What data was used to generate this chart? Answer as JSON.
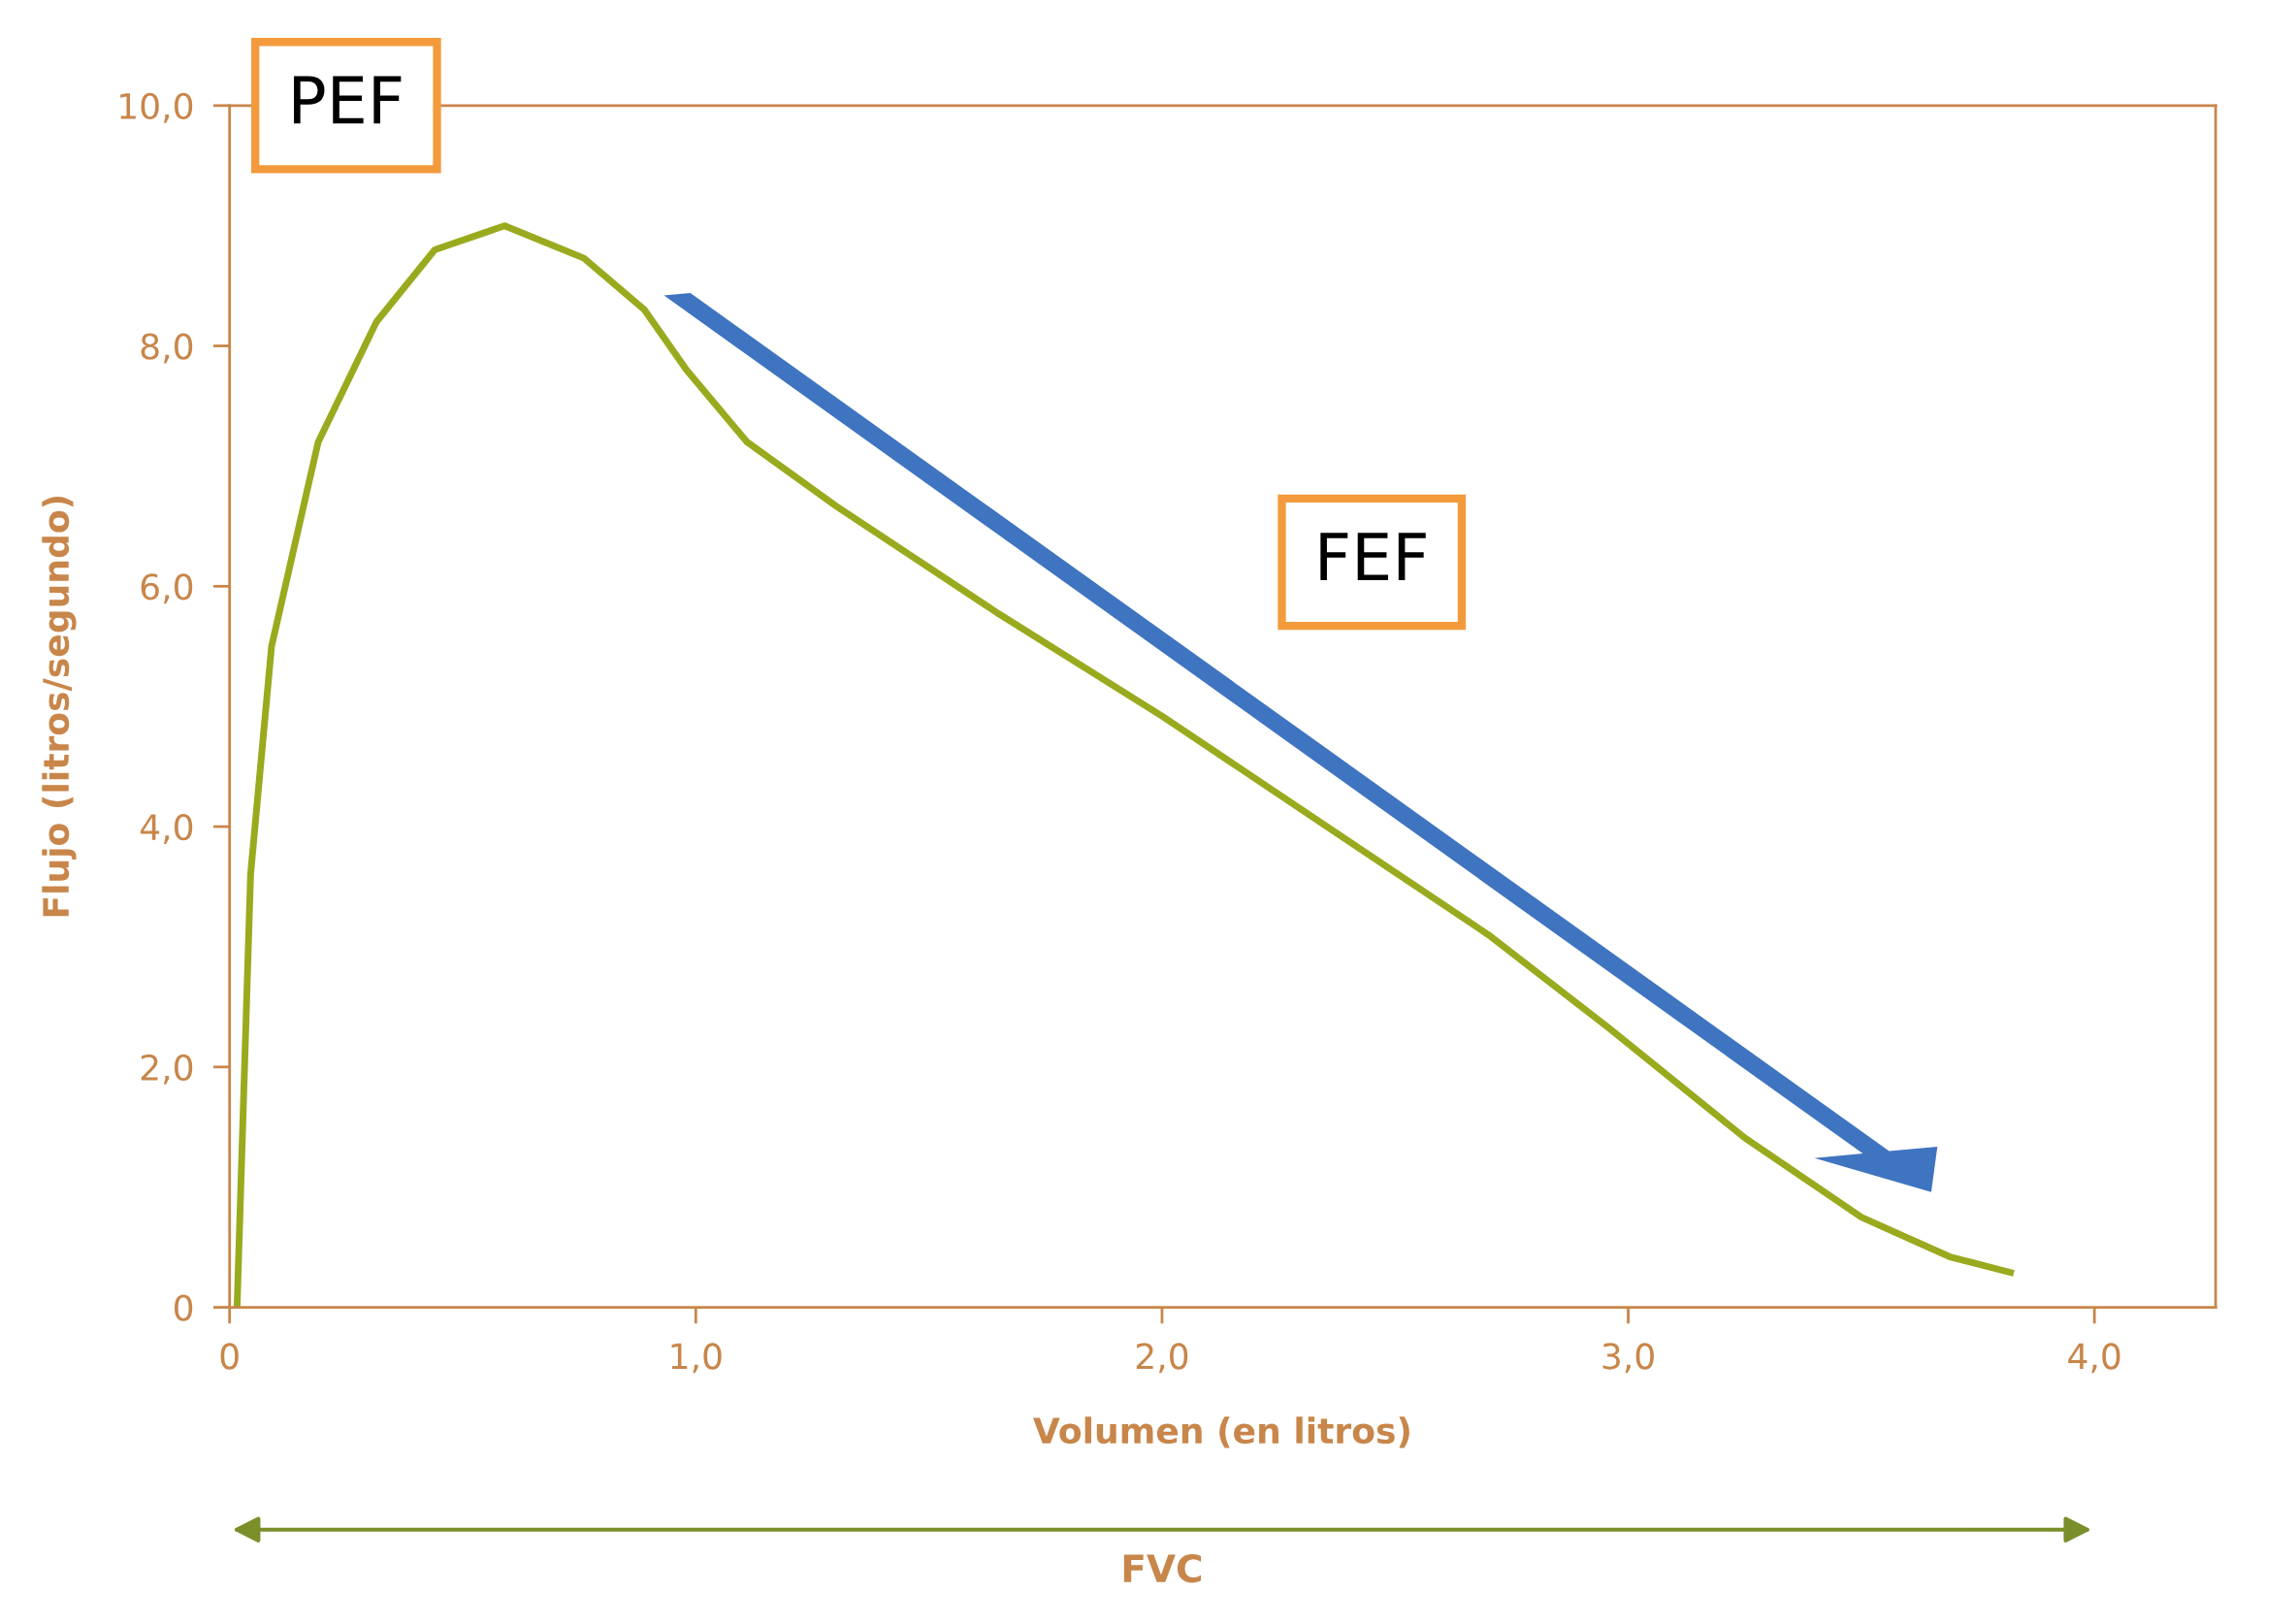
{
  "chart_data": {
    "type": "line",
    "xlabel": "Volumen (en litros)",
    "ylabel": "Flujo (litros/segundo)",
    "x": [
      0.016,
      0.045,
      0.09,
      0.19,
      0.315,
      0.44,
      0.59,
      0.76,
      0.89,
      0.98,
      1.11,
      1.3,
      1.65,
      2.0,
      2.35,
      2.7,
      2.96,
      3.25,
      3.5,
      3.69,
      3.82
    ],
    "series": [
      {
        "color": "#9aaa1e",
        "values": [
          0,
          3.6,
          5.5,
          7.2,
          8.2,
          8.8,
          9.0,
          8.73,
          8.3,
          7.8,
          7.2,
          6.67,
          5.77,
          4.92,
          4.01,
          3.1,
          2.32,
          1.41,
          0.75,
          0.42,
          0.29
        ]
      }
    ],
    "xlim": [
      0,
      4.26
    ],
    "ylim": [
      0,
      10
    ],
    "xticks": [
      {
        "value": 0,
        "label": "0"
      },
      {
        "value": 1,
        "label": "1,0"
      },
      {
        "value": 2,
        "label": "2,0"
      },
      {
        "value": 3,
        "label": "3,0"
      },
      {
        "value": 4,
        "label": "4,0"
      }
    ],
    "yticks": [
      {
        "value": 0,
        "label": "0"
      },
      {
        "value": 2,
        "label": "2,0"
      },
      {
        "value": 4,
        "label": "4,0"
      },
      {
        "value": 6,
        "label": "6,0"
      },
      {
        "value": 8,
        "label": "8,0"
      },
      {
        "value": 10,
        "label": "10,0"
      }
    ],
    "annotations": [
      "PEF",
      "FEF",
      "FVC"
    ],
    "grid": false,
    "legend": false,
    "marker": "none",
    "line_style": "solid"
  }
}
